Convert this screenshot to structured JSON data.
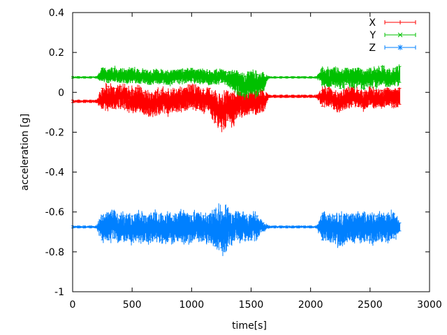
{
  "chart_data": {
    "type": "line",
    "title": "",
    "xlabel": "time[s]",
    "ylabel": "acceleration [g]",
    "xlim": [
      0,
      3000
    ],
    "ylim": [
      -1,
      0.4
    ],
    "xticks": [
      "0",
      "500",
      "1000",
      "1500",
      "2000",
      "2500",
      "3000"
    ],
    "xtick_values": [
      0,
      500,
      1000,
      1500,
      2000,
      2500,
      3000
    ],
    "yticks": [
      "0.4",
      "0.2",
      "0",
      "-0.2",
      "-0.4",
      "-0.6",
      "-0.8",
      "-1"
    ],
    "ytick_values": [
      0.4,
      0.2,
      0,
      -0.2,
      -0.4,
      -0.6,
      -0.8,
      -1
    ],
    "grid": false,
    "legend_position": "top-right",
    "x": [
      0,
      50,
      100,
      150,
      200,
      250,
      300,
      350,
      400,
      450,
      500,
      550,
      600,
      650,
      700,
      750,
      800,
      850,
      900,
      950,
      1000,
      1050,
      1100,
      1150,
      1200,
      1250,
      1300,
      1350,
      1400,
      1450,
      1500,
      1550,
      1600,
      1650,
      1700,
      1750,
      1800,
      1850,
      1900,
      1950,
      2000,
      2050,
      2100,
      2150,
      2200,
      2250,
      2300,
      2350,
      2400,
      2450,
      2500,
      2550,
      2600,
      2650,
      2700,
      2750
    ],
    "series": [
      {
        "name": "X",
        "color": "#ff0000",
        "marker": "+",
        "values": [
          -0.045,
          -0.045,
          -0.045,
          -0.045,
          -0.045,
          -0.03,
          -0.02,
          -0.03,
          -0.02,
          -0.03,
          -0.04,
          -0.03,
          -0.05,
          -0.06,
          -0.05,
          -0.04,
          -0.05,
          -0.04,
          -0.04,
          -0.03,
          -0.02,
          -0.03,
          -0.04,
          -0.03,
          -0.08,
          -0.1,
          -0.07,
          -0.08,
          -0.05,
          -0.06,
          -0.04,
          -0.05,
          -0.04,
          -0.02,
          -0.02,
          -0.02,
          -0.02,
          -0.02,
          -0.02,
          -0.02,
          -0.02,
          -0.02,
          -0.03,
          -0.02,
          -0.04,
          -0.05,
          -0.03,
          -0.02,
          -0.03,
          -0.04,
          -0.02,
          -0.03,
          -0.03,
          -0.02,
          -0.03,
          -0.02
        ],
        "errors": [
          0.006,
          0.006,
          0.006,
          0.006,
          0.006,
          0.05,
          0.05,
          0.05,
          0.05,
          0.05,
          0.05,
          0.05,
          0.05,
          0.05,
          0.05,
          0.05,
          0.05,
          0.05,
          0.05,
          0.05,
          0.05,
          0.05,
          0.05,
          0.05,
          0.07,
          0.07,
          0.07,
          0.07,
          0.05,
          0.05,
          0.05,
          0.05,
          0.05,
          0.006,
          0.006,
          0.006,
          0.006,
          0.006,
          0.006,
          0.006,
          0.006,
          0.006,
          0.04,
          0.04,
          0.04,
          0.04,
          0.04,
          0.04,
          0.04,
          0.04,
          0.04,
          0.04,
          0.04,
          0.04,
          0.04,
          0.04
        ]
      },
      {
        "name": "Y",
        "color": "#00c000",
        "marker": "x",
        "values": [
          0.075,
          0.075,
          0.075,
          0.075,
          0.075,
          0.09,
          0.08,
          0.09,
          0.08,
          0.08,
          0.09,
          0.08,
          0.08,
          0.07,
          0.08,
          0.08,
          0.07,
          0.08,
          0.08,
          0.08,
          0.09,
          0.08,
          0.08,
          0.07,
          0.08,
          0.08,
          0.07,
          0.06,
          0.04,
          0.03,
          0.05,
          0.04,
          0.05,
          0.075,
          0.075,
          0.075,
          0.075,
          0.075,
          0.075,
          0.075,
          0.075,
          0.075,
          0.08,
          0.07,
          0.08,
          0.06,
          0.08,
          0.07,
          0.08,
          0.06,
          0.08,
          0.07,
          0.09,
          0.07,
          0.08,
          0.09
        ],
        "errors": [
          0.004,
          0.004,
          0.004,
          0.004,
          0.004,
          0.03,
          0.03,
          0.03,
          0.03,
          0.03,
          0.03,
          0.03,
          0.03,
          0.03,
          0.03,
          0.03,
          0.03,
          0.03,
          0.03,
          0.03,
          0.03,
          0.03,
          0.03,
          0.03,
          0.03,
          0.03,
          0.03,
          0.04,
          0.05,
          0.05,
          0.05,
          0.05,
          0.04,
          0.004,
          0.004,
          0.004,
          0.004,
          0.004,
          0.004,
          0.004,
          0.004,
          0.004,
          0.04,
          0.04,
          0.04,
          0.04,
          0.04,
          0.04,
          0.04,
          0.04,
          0.04,
          0.04,
          0.04,
          0.04,
          0.04,
          0.04
        ]
      },
      {
        "name": "Z",
        "color": "#0080ff",
        "marker": "*",
        "values": [
          -0.675,
          -0.675,
          -0.675,
          -0.675,
          -0.675,
          -0.68,
          -0.68,
          -0.67,
          -0.68,
          -0.68,
          -0.68,
          -0.67,
          -0.68,
          -0.68,
          -0.67,
          -0.68,
          -0.68,
          -0.68,
          -0.67,
          -0.68,
          -0.68,
          -0.67,
          -0.68,
          -0.68,
          -0.68,
          -0.69,
          -0.68,
          -0.68,
          -0.67,
          -0.68,
          -0.68,
          -0.67,
          -0.675,
          -0.675,
          -0.675,
          -0.675,
          -0.675,
          -0.675,
          -0.675,
          -0.675,
          -0.675,
          -0.675,
          -0.68,
          -0.68,
          -0.68,
          -0.69,
          -0.68,
          -0.68,
          -0.67,
          -0.68,
          -0.68,
          -0.68,
          -0.68,
          -0.68,
          -0.67,
          -0.675
        ],
        "errors": [
          0.005,
          0.005,
          0.005,
          0.005,
          0.005,
          0.06,
          0.06,
          0.06,
          0.06,
          0.06,
          0.06,
          0.06,
          0.06,
          0.06,
          0.06,
          0.06,
          0.06,
          0.06,
          0.06,
          0.06,
          0.06,
          0.06,
          0.06,
          0.06,
          0.09,
          0.09,
          0.09,
          0.06,
          0.06,
          0.06,
          0.06,
          0.05,
          0.02,
          0.005,
          0.005,
          0.005,
          0.005,
          0.005,
          0.005,
          0.005,
          0.005,
          0.005,
          0.06,
          0.06,
          0.06,
          0.07,
          0.06,
          0.06,
          0.06,
          0.06,
          0.06,
          0.06,
          0.06,
          0.06,
          0.06,
          0.02
        ]
      }
    ]
  }
}
